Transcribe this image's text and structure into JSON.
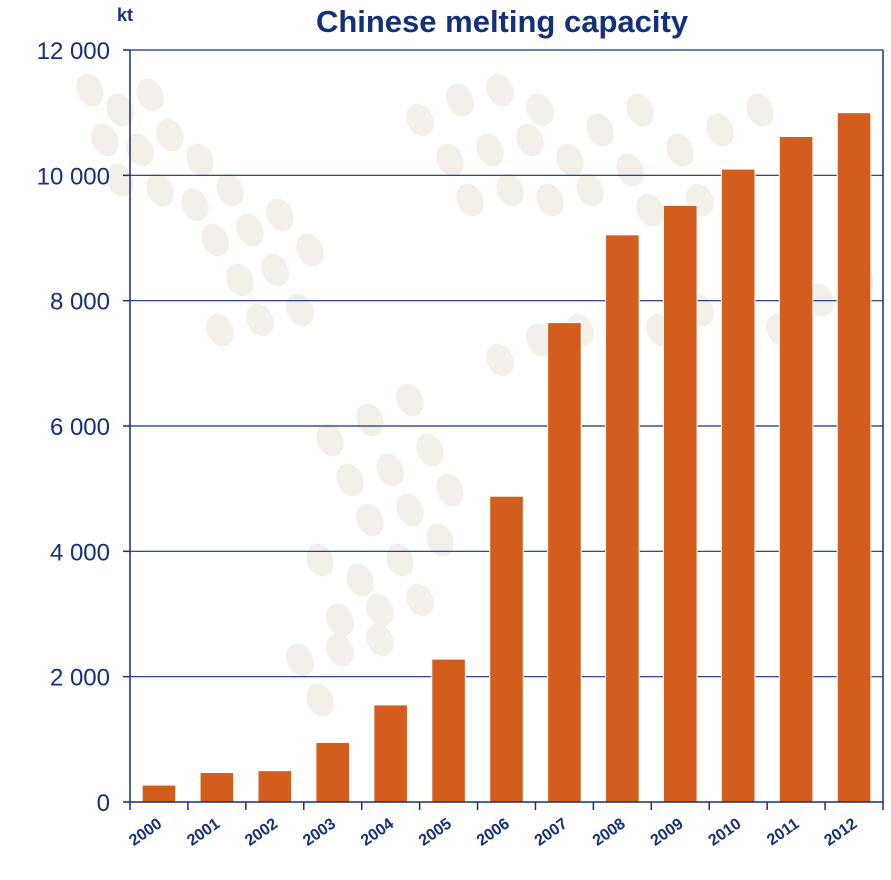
{
  "chart_data": {
    "type": "bar",
    "title": "Chinese melting capacity",
    "unit_label": "kt",
    "xlabel": "",
    "ylabel": "",
    "categories": [
      "2000",
      "2001",
      "2002",
      "2003",
      "2004",
      "2005",
      "2006",
      "2007",
      "2008",
      "2009",
      "2010",
      "2011",
      "2012"
    ],
    "values": [
      270,
      470,
      500,
      950,
      1550,
      2280,
      4880,
      7650,
      9050,
      9520,
      10100,
      10620,
      11000
    ],
    "ylim": [
      0,
      12000
    ],
    "yticks": [
      0,
      2000,
      4000,
      6000,
      8000,
      10000,
      12000
    ],
    "ytick_labels": [
      "0",
      "2 000",
      "4 000",
      "6 000",
      "8 000",
      "10 000",
      "12 000"
    ],
    "grid": true,
    "legend": "none",
    "bar_color": "#d35d1c",
    "axis_color": "#14307a",
    "text_color": "#14307a"
  }
}
